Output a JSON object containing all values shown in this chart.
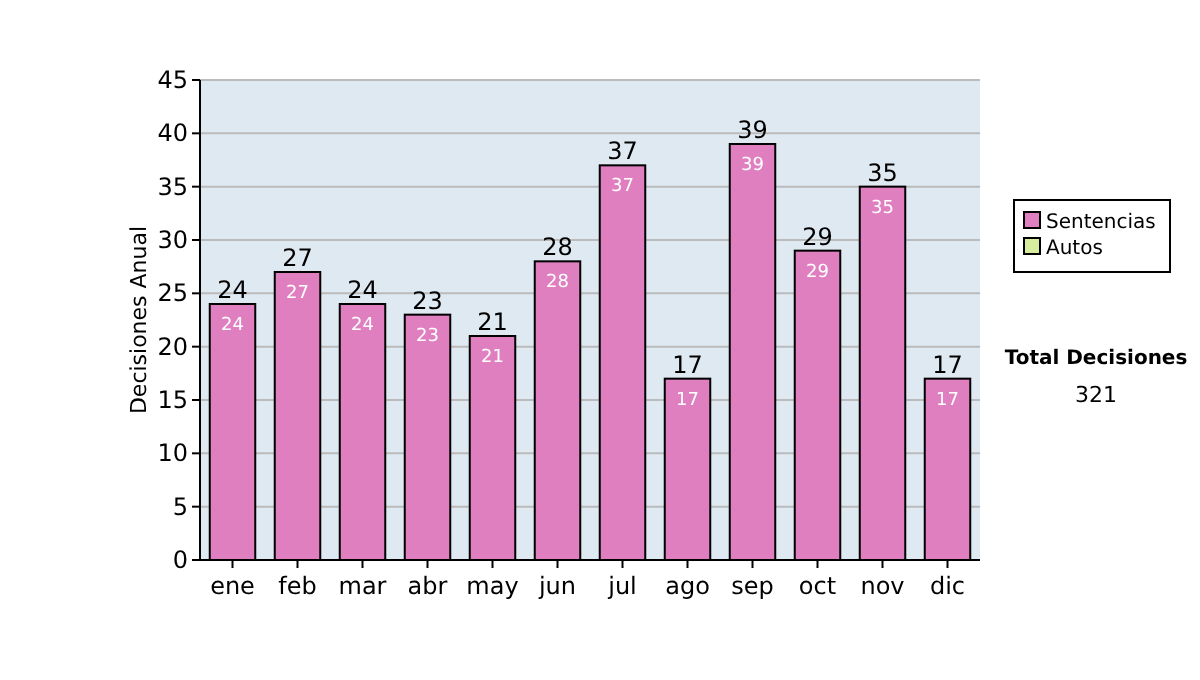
{
  "chart_data": {
    "type": "bar",
    "stacked": true,
    "ylabel": "Decisiones Anual",
    "categories": [
      "ene",
      "feb",
      "mar",
      "abr",
      "may",
      "jun",
      "jul",
      "ago",
      "sep",
      "oct",
      "nov",
      "dic"
    ],
    "series": [
      {
        "name": "Sentencias",
        "color": "#e07fc0",
        "values": [
          24,
          27,
          24,
          23,
          21,
          28,
          37,
          17,
          39,
          29,
          35,
          17
        ],
        "value_labels": [
          "24",
          "27",
          "24",
          "23",
          "21",
          "28",
          "37",
          "17",
          "39",
          "29",
          "35",
          "17"
        ]
      },
      {
        "name": "Autos",
        "color": "#d8eca0",
        "values": [
          0,
          0,
          0,
          0,
          0,
          0,
          0,
          0,
          0,
          0,
          0,
          0
        ]
      }
    ],
    "totals": [
      "24",
      "27",
      "24",
      "23",
      "21",
      "28",
      "37",
      "17",
      "39",
      "29",
      "35",
      "17"
    ],
    "ylim": [
      0,
      45
    ],
    "yticks": [
      0,
      5,
      10,
      15,
      20,
      25,
      30,
      35,
      40,
      45
    ],
    "grid": "y",
    "legend": "right",
    "annotations": [
      "Total Decisiones",
      "321"
    ]
  }
}
